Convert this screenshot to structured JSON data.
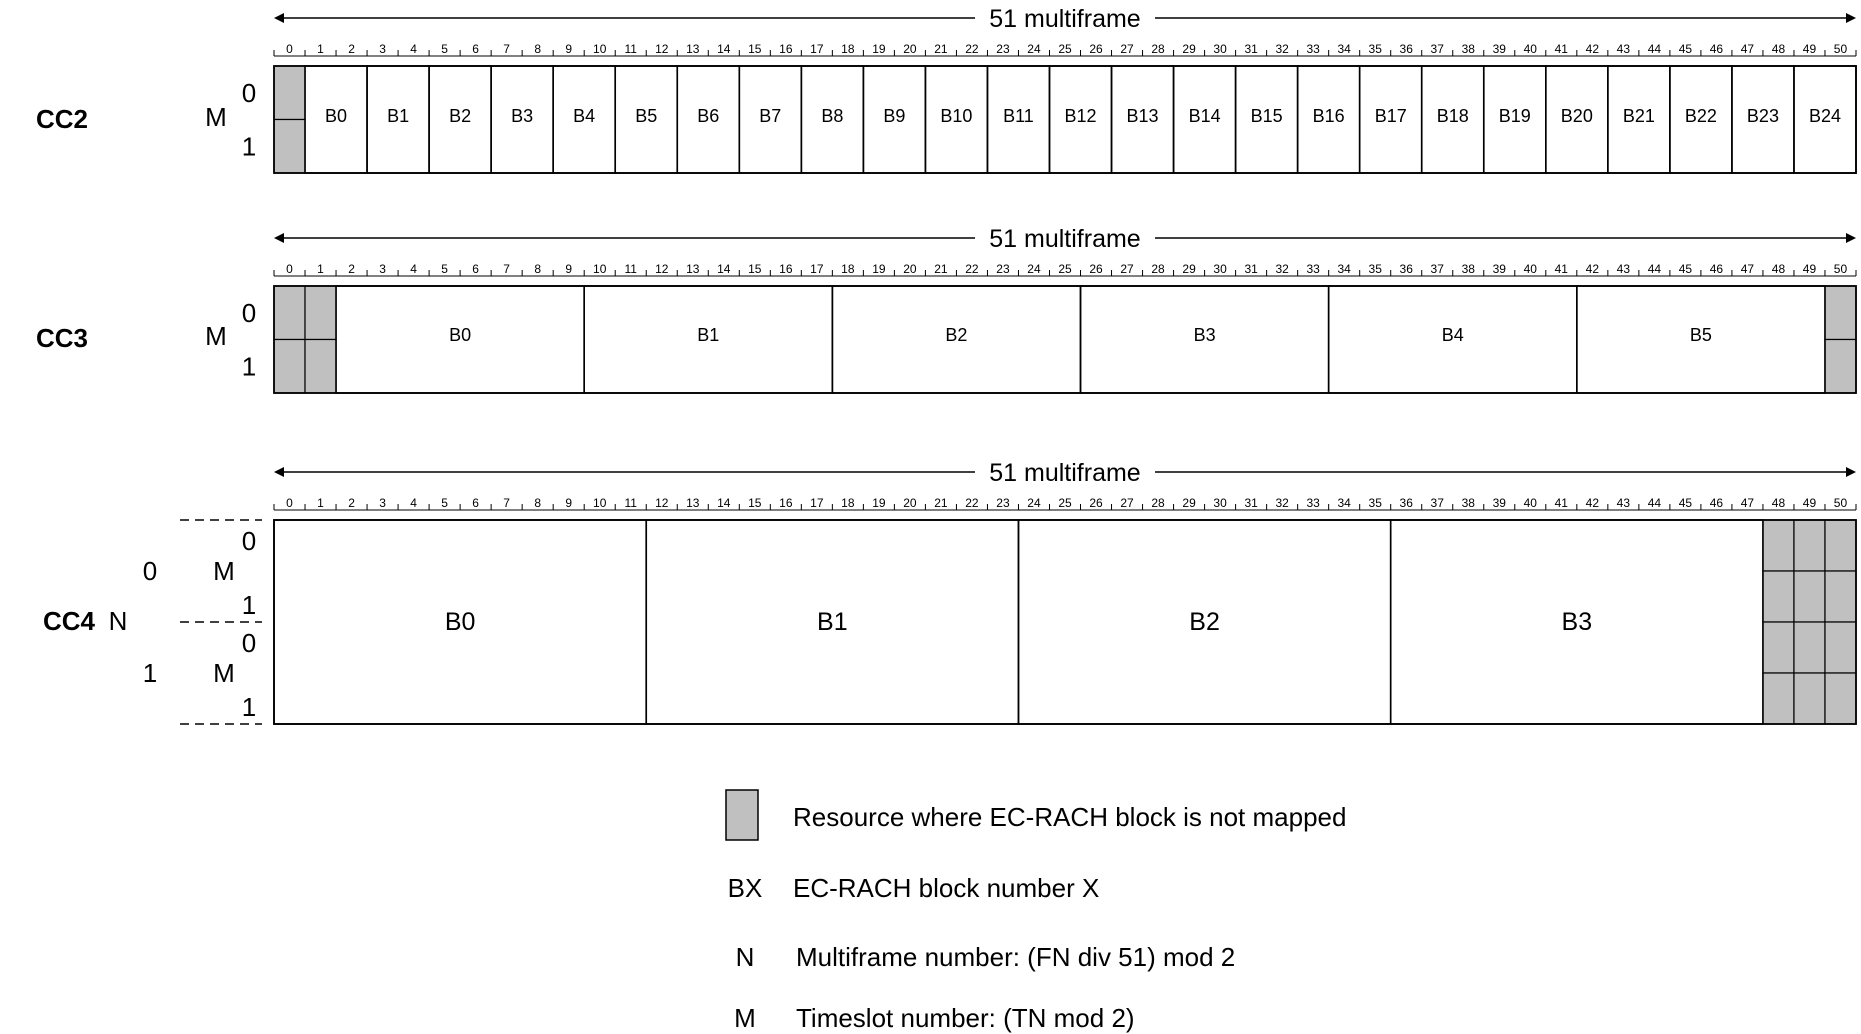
{
  "span_label": "51 multiframe",
  "tick_labels": [
    "0",
    "1",
    "2",
    "3",
    "4",
    "5",
    "6",
    "7",
    "8",
    "9",
    "10",
    "11",
    "12",
    "13",
    "14",
    "15",
    "16",
    "17",
    "18",
    "19",
    "20",
    "21",
    "22",
    "23",
    "24",
    "25",
    "26",
    "27",
    "28",
    "29",
    "30",
    "31",
    "32",
    "33",
    "34",
    "35",
    "36",
    "37",
    "38",
    "39",
    "40",
    "41",
    "42",
    "43",
    "44",
    "45",
    "46",
    "47",
    "48",
    "49",
    "50"
  ],
  "rows": [
    {
      "id": "cc2",
      "label": "CC2",
      "m_label": "M",
      "timeslots": [
        "0",
        "1"
      ],
      "unmapped_frames": [
        0
      ],
      "blocks": [
        {
          "label": "B0",
          "start": 1,
          "len": 2
        },
        {
          "label": "B1",
          "start": 3,
          "len": 2
        },
        {
          "label": "B2",
          "start": 5,
          "len": 2
        },
        {
          "label": "B3",
          "start": 7,
          "len": 2
        },
        {
          "label": "B4",
          "start": 9,
          "len": 2
        },
        {
          "label": "B5",
          "start": 11,
          "len": 2
        },
        {
          "label": "B6",
          "start": 13,
          "len": 2
        },
        {
          "label": "B7",
          "start": 15,
          "len": 2
        },
        {
          "label": "B8",
          "start": 17,
          "len": 2
        },
        {
          "label": "B9",
          "start": 19,
          "len": 2
        },
        {
          "label": "B10",
          "start": 21,
          "len": 2
        },
        {
          "label": "B11",
          "start": 23,
          "len": 2
        },
        {
          "label": "B12",
          "start": 25,
          "len": 2
        },
        {
          "label": "B13",
          "start": 27,
          "len": 2
        },
        {
          "label": "B14",
          "start": 29,
          "len": 2
        },
        {
          "label": "B15",
          "start": 31,
          "len": 2
        },
        {
          "label": "B16",
          "start": 33,
          "len": 2
        },
        {
          "label": "B17",
          "start": 35,
          "len": 2
        },
        {
          "label": "B18",
          "start": 37,
          "len": 2
        },
        {
          "label": "B19",
          "start": 39,
          "len": 2
        },
        {
          "label": "B20",
          "start": 41,
          "len": 2
        },
        {
          "label": "B21",
          "start": 43,
          "len": 2
        },
        {
          "label": "B22",
          "start": 45,
          "len": 2
        },
        {
          "label": "B23",
          "start": 47,
          "len": 2
        },
        {
          "label": "B24",
          "start": 49,
          "len": 2
        }
      ]
    },
    {
      "id": "cc3",
      "label": "CC3",
      "m_label": "M",
      "timeslots": [
        "0",
        "1"
      ],
      "unmapped_frames": [
        0,
        1,
        50
      ],
      "blocks": [
        {
          "label": "B0",
          "start": 2,
          "len": 8
        },
        {
          "label": "B1",
          "start": 10,
          "len": 8
        },
        {
          "label": "B2",
          "start": 18,
          "len": 8
        },
        {
          "label": "B3",
          "start": 26,
          "len": 8
        },
        {
          "label": "B4",
          "start": 34,
          "len": 8
        },
        {
          "label": "B5",
          "start": 42,
          "len": 8
        }
      ]
    },
    {
      "id": "cc4",
      "label": "CC4",
      "n_label": "N",
      "n_values": [
        "0",
        "1"
      ],
      "m_label": "M",
      "timeslots": [
        "0",
        "1",
        "0",
        "1"
      ],
      "unmapped_frames": [
        48,
        49,
        50
      ],
      "blocks": [
        {
          "label": "B0",
          "start": 0,
          "len": 12
        },
        {
          "label": "B1",
          "start": 12,
          "len": 12
        },
        {
          "label": "B2",
          "start": 24,
          "len": 12
        },
        {
          "label": "B3",
          "start": 36,
          "len": 12
        }
      ]
    }
  ],
  "legend": {
    "items": [
      {
        "symbol": "",
        "text": "Resource where EC-RACH block is not mapped"
      },
      {
        "symbol": "BX",
        "text": "EC-RACH block number X"
      },
      {
        "symbol": "N",
        "text": "Multiframe number: (FN div 51) mod 2"
      },
      {
        "symbol": "M",
        "text": "Timeslot number: (TN mod 2)"
      }
    ]
  },
  "colors": {
    "unmapped_fill": "#c0c0c0",
    "line": "#000000",
    "background": "#ffffff"
  }
}
